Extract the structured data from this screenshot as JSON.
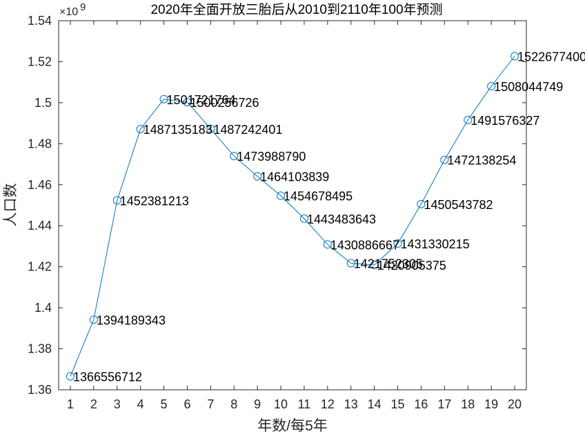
{
  "chart_data": {
    "type": "line",
    "title": "2020年全面开放三胎后从2010到2110年100年预测",
    "xlabel": "年数/每5年",
    "ylabel": "人口数",
    "exponent_label": "×10",
    "exponent_power": "9",
    "x": [
      1,
      2,
      3,
      4,
      5,
      6,
      7,
      8,
      9,
      10,
      11,
      12,
      13,
      14,
      15,
      16,
      17,
      18,
      19,
      20
    ],
    "values": [
      1366556712,
      1394189343,
      1452381213,
      1487135183,
      1501721764,
      1500256726,
      1487242401,
      1473988790,
      1464103839,
      1454678495,
      1443483643,
      1430886667,
      1421752305,
      1420905375,
      1431330215,
      1450543782,
      1472138254,
      1491576327,
      1508044749,
      1522677400
    ],
    "data_labels": [
      "1366556712",
      "1394189343",
      "1452381213",
      "1487135183",
      "1501721764",
      "1500256726",
      "1487242401",
      "1473988790",
      "1464103839",
      "1454678495",
      "1443483643",
      "1430886667",
      "1421752305",
      "1420905375",
      "1431330215",
      "1450543782",
      "1472138254",
      "1491576327",
      "1508044749",
      "1522677400"
    ],
    "xlim": [
      0.5,
      20.5
    ],
    "ylim": [
      1360000000,
      1540000000
    ],
    "xticks": [
      "1",
      "2",
      "3",
      "4",
      "5",
      "6",
      "7",
      "8",
      "9",
      "10",
      "11",
      "12",
      "13",
      "14",
      "15",
      "16",
      "17",
      "18",
      "19",
      "20"
    ],
    "yticks": [
      "1.36",
      "1.38",
      "1.4",
      "1.42",
      "1.44",
      "1.46",
      "1.48",
      "1.5",
      "1.52",
      "1.54"
    ],
    "ytick_values": [
      1.36,
      1.38,
      1.4,
      1.42,
      1.44,
      1.46,
      1.48,
      1.5,
      1.52,
      1.54
    ],
    "grid": false,
    "marker": "circle",
    "line_color": "#0072BD"
  }
}
